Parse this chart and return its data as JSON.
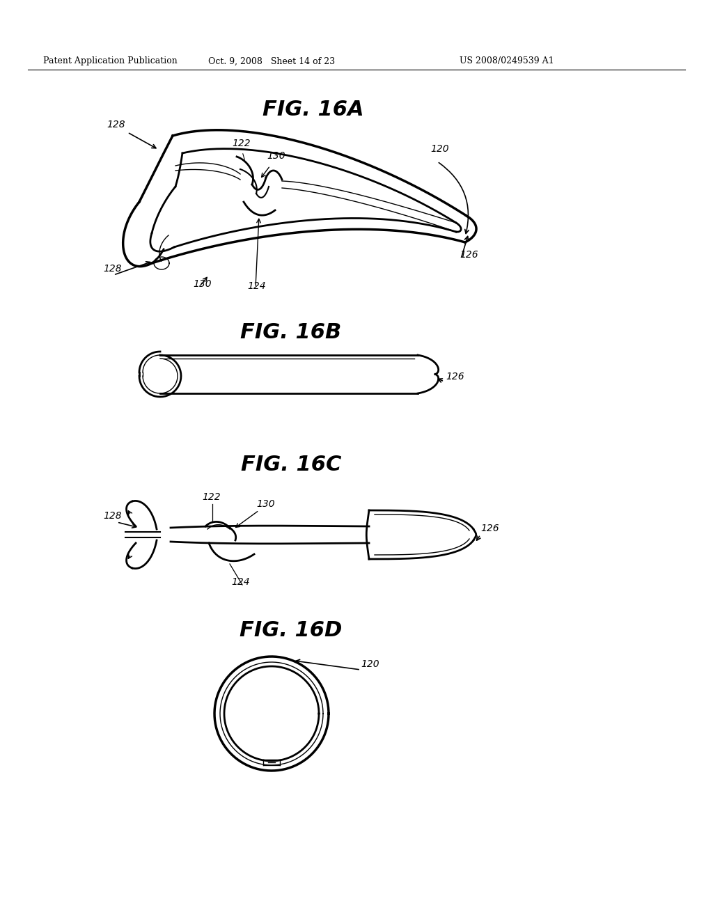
{
  "header_left": "Patent Application Publication",
  "header_mid": "Oct. 9, 2008   Sheet 14 of 23",
  "header_right": "US 2008/0249539 A1",
  "fig16a_title": "FIG. 16A",
  "fig16b_title": "FIG. 16B",
  "fig16c_title": "FIG. 16C",
  "fig16d_title": "FIG. 16D",
  "bg_color": "#ffffff",
  "line_color": "#000000"
}
